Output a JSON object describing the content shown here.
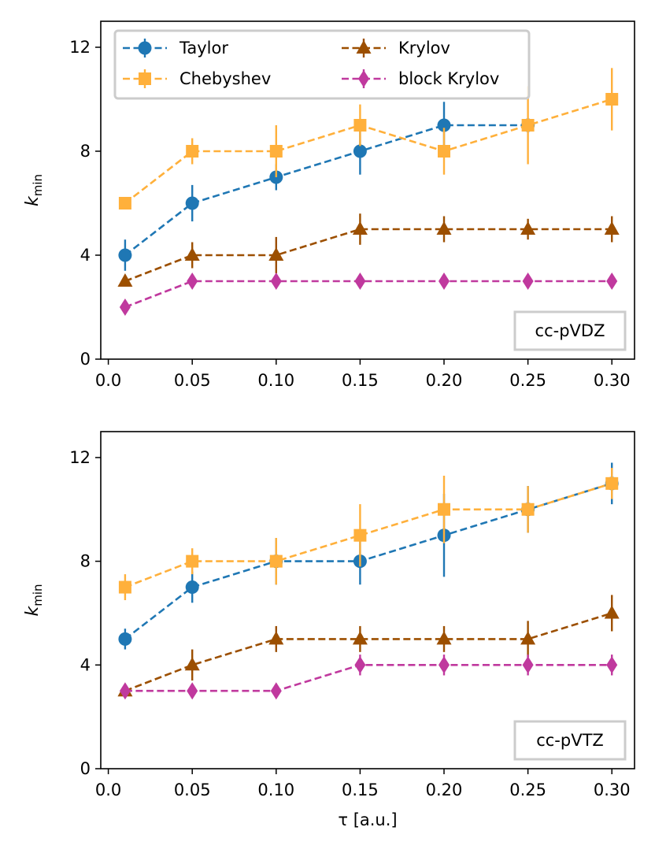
{
  "colors": {
    "Taylor": "#1f77b4",
    "Chebyshev": "#ffb03b",
    "Krylov": "#9c4f00",
    "block Krylov": "#c0399e"
  },
  "chart_data": [
    {
      "type": "line",
      "basis_label": "cc-pVDZ",
      "ylabel_main": "k",
      "ylabel_sub": "min",
      "xlabel": "",
      "x": [
        0.01,
        0.05,
        0.1,
        0.15,
        0.2,
        0.25,
        0.3
      ],
      "xticks": [
        0.0,
        0.05,
        0.1,
        0.15,
        0.2,
        0.25,
        0.3
      ],
      "xtick_labels": [
        "0.0",
        "0.05",
        "0.10",
        "0.15",
        "0.20",
        "0.25",
        "0.30"
      ],
      "yticks": [
        0,
        4,
        8,
        12
      ],
      "ytick_labels": [
        "0",
        "4",
        "8",
        "12"
      ],
      "xlim": [
        -0.0045,
        0.3135
      ],
      "ylim": [
        0,
        13
      ],
      "legend_position": "top-left",
      "series": [
        {
          "name": "Taylor",
          "marker": "circle",
          "values": [
            4,
            6,
            7,
            8,
            9,
            9,
            null
          ],
          "err": [
            0.6,
            0.7,
            0.5,
            0.9,
            0.9,
            0,
            null
          ]
        },
        {
          "name": "Chebyshev",
          "marker": "square",
          "values": [
            6,
            8,
            8,
            9,
            8,
            9,
            10
          ],
          "err": [
            0.2,
            0.5,
            1.0,
            0.8,
            0.9,
            1.5,
            1.2
          ]
        },
        {
          "name": "Krylov",
          "marker": "triangle",
          "values": [
            3,
            4,
            4,
            5,
            5,
            5,
            5
          ],
          "err": [
            0.2,
            0.5,
            0.7,
            0.6,
            0.5,
            0.4,
            0.5
          ]
        },
        {
          "name": "block Krylov",
          "marker": "diamond",
          "values": [
            2,
            3,
            3,
            3,
            3,
            3,
            3
          ],
          "err": [
            0.15,
            0.15,
            0.15,
            0.15,
            0.15,
            0.15,
            0.15
          ]
        }
      ]
    },
    {
      "type": "line",
      "basis_label": "cc-pVTZ",
      "ylabel_main": "k",
      "ylabel_sub": "min",
      "xlabel": "τ [a.u.]",
      "x": [
        0.01,
        0.05,
        0.1,
        0.15,
        0.2,
        0.25,
        0.3
      ],
      "xticks": [
        0.0,
        0.05,
        0.1,
        0.15,
        0.2,
        0.25,
        0.3
      ],
      "xtick_labels": [
        "0.0",
        "0.05",
        "0.10",
        "0.15",
        "0.20",
        "0.25",
        "0.30"
      ],
      "yticks": [
        0,
        4,
        8,
        12
      ],
      "ytick_labels": [
        "0",
        "4",
        "8",
        "12"
      ],
      "xlim": [
        -0.0045,
        0.3135
      ],
      "ylim": [
        0,
        13
      ],
      "legend_position": "none",
      "series": [
        {
          "name": "Taylor",
          "marker": "circle",
          "values": [
            5,
            7,
            8,
            8,
            9,
            10,
            11
          ],
          "err": [
            0.4,
            0.6,
            0.9,
            0.9,
            1.6,
            0.9,
            0.8
          ]
        },
        {
          "name": "Chebyshev",
          "marker": "square",
          "values": [
            7,
            8,
            8,
            9,
            10,
            10,
            11
          ],
          "err": [
            0.5,
            0.5,
            0.9,
            1.2,
            1.3,
            0.9,
            0.6
          ]
        },
        {
          "name": "Krylov",
          "marker": "triangle",
          "values": [
            3,
            4,
            5,
            5,
            5,
            5,
            6
          ],
          "err": [
            0.2,
            0.6,
            0.5,
            0.5,
            0.5,
            0.7,
            0.7
          ]
        },
        {
          "name": "block Krylov",
          "marker": "diamond",
          "values": [
            3,
            3,
            3,
            4,
            4,
            4,
            4
          ],
          "err": [
            0.15,
            0.15,
            0.2,
            0.4,
            0.4,
            0.4,
            0.4
          ]
        }
      ]
    }
  ]
}
